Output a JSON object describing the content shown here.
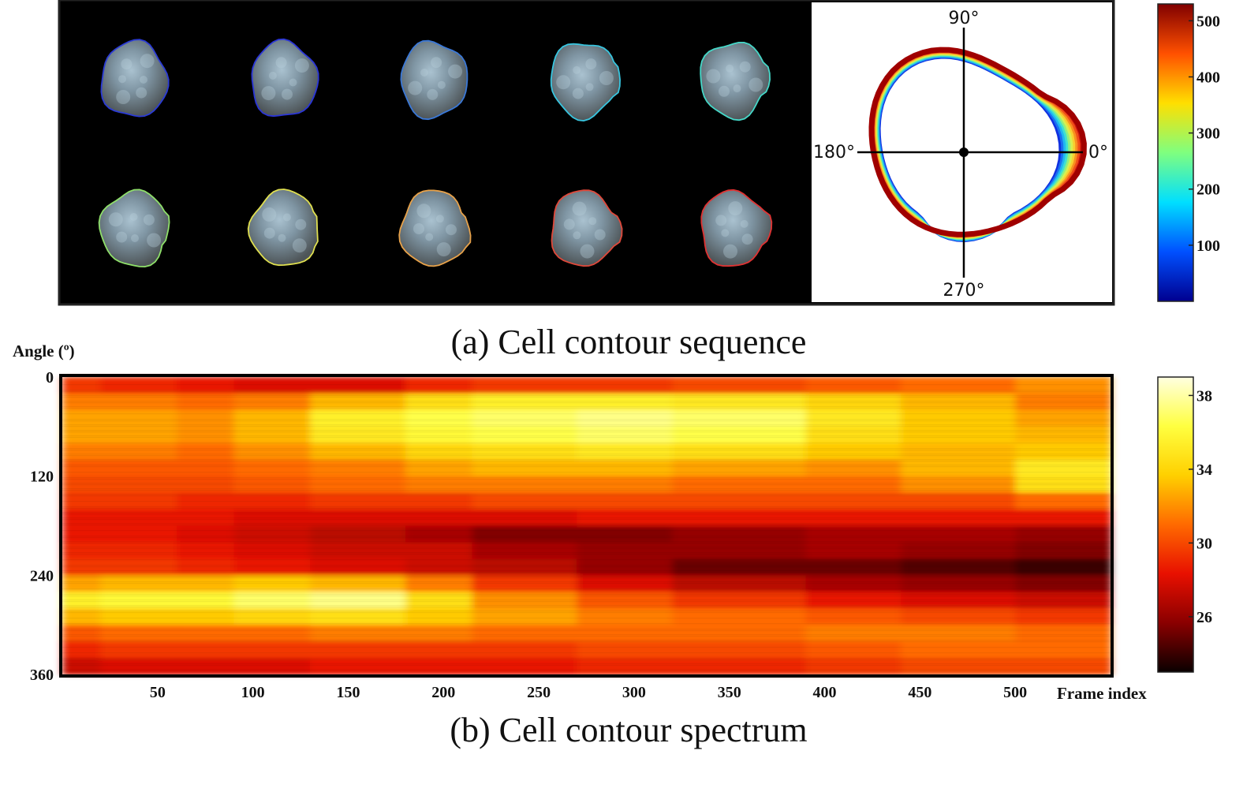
{
  "chart_data": [
    {
      "type": "image-sequence",
      "caption": "(a) Cell contour sequence",
      "cell_outline_colors": [
        "#2b3bd6",
        "#2a35d8",
        "#3a78d8",
        "#38c6e0",
        "#45d8c8",
        "#8fe06a",
        "#e0e050",
        "#e8a24a",
        "#e0483a",
        "#e03232"
      ],
      "polar_labels": {
        "deg0": "0°",
        "deg90": "90°",
        "deg180": "180°",
        "deg270": "270°"
      },
      "colorbar": {
        "ticks": [
          "500",
          "400",
          "300",
          "200",
          "100"
        ],
        "min": 0,
        "max": 530,
        "stops": [
          "#00008f",
          "#0050ff",
          "#00dfff",
          "#7fff7f",
          "#ffdf00",
          "#ff5000",
          "#800000"
        ]
      }
    },
    {
      "type": "heatmap",
      "caption": "(b) Cell contour spectrum",
      "ylabel": "Angle (º)",
      "xlabel": "Frame index",
      "yticks": [
        "0",
        "120",
        "240",
        "360"
      ],
      "ytick_values": [
        0,
        120,
        240,
        360
      ],
      "xticks": [
        "50",
        "100",
        "150",
        "200",
        "250",
        "300",
        "350",
        "400",
        "450",
        "500"
      ],
      "xtick_values": [
        50,
        100,
        150,
        200,
        250,
        300,
        350,
        400,
        450,
        500
      ],
      "xlim": [
        0,
        550
      ],
      "ylim": [
        0,
        360
      ],
      "colorbar": {
        "ticks": [
          "38",
          "34",
          "30",
          "26"
        ],
        "tick_values": [
          38,
          34,
          30,
          26
        ],
        "min": 23,
        "max": 39,
        "stops": [
          "#0a0000",
          "#8a0000",
          "#e81000",
          "#ff6a00",
          "#ffd000",
          "#ffff40",
          "#ffffe0"
        ]
      },
      "frame_bands": [
        0,
        20,
        60,
        90,
        130,
        180,
        215,
        270,
        320,
        390,
        440,
        500,
        550
      ],
      "angle_bins": [
        0,
        20,
        40,
        60,
        80,
        100,
        120,
        140,
        160,
        180,
        200,
        220,
        240,
        260,
        280,
        300,
        320,
        340,
        360
      ],
      "values": [
        [
          29.5,
          29.0,
          28.5,
          28.0,
          28.0,
          29.0,
          29.5,
          29.5,
          30.0,
          30.5,
          31.0,
          32.0,
          33.0
        ],
        [
          31.5,
          31.5,
          31.0,
          31.5,
          33.0,
          34.5,
          35.5,
          35.5,
          35.0,
          34.0,
          33.0,
          31.5,
          31.0
        ],
        [
          32.5,
          32.5,
          32.0,
          33.0,
          35.5,
          36.5,
          37.0,
          37.5,
          37.0,
          35.0,
          33.5,
          32.5,
          32.0
        ],
        [
          32.5,
          32.5,
          32.0,
          33.0,
          35.0,
          36.0,
          36.5,
          37.0,
          36.5,
          34.5,
          33.5,
          33.0,
          33.0
        ],
        [
          31.5,
          31.5,
          31.0,
          32.0,
          33.0,
          34.0,
          34.5,
          35.0,
          34.5,
          33.5,
          33.0,
          33.5,
          34.0
        ],
        [
          30.5,
          30.5,
          30.5,
          31.0,
          31.5,
          32.5,
          33.0,
          33.0,
          32.5,
          32.0,
          33.0,
          35.0,
          35.5
        ],
        [
          30.0,
          30.0,
          30.0,
          30.5,
          31.0,
          31.5,
          31.5,
          31.5,
          31.0,
          31.0,
          32.0,
          34.5,
          36.0
        ],
        [
          29.5,
          29.5,
          29.0,
          29.0,
          29.5,
          29.5,
          30.0,
          30.0,
          30.0,
          30.0,
          30.0,
          31.0,
          31.5
        ],
        [
          28.5,
          28.5,
          28.5,
          28.0,
          28.0,
          28.0,
          28.0,
          28.5,
          28.5,
          28.5,
          28.5,
          28.5,
          28.5
        ],
        [
          28.5,
          28.5,
          28.0,
          27.5,
          27.0,
          26.5,
          25.5,
          25.5,
          26.0,
          26.5,
          26.5,
          26.0,
          26.0
        ],
        [
          29.0,
          29.0,
          28.5,
          28.0,
          27.5,
          27.5,
          26.5,
          26.0,
          26.0,
          26.5,
          26.0,
          25.5,
          25.5
        ],
        [
          29.5,
          29.5,
          29.0,
          28.5,
          28.0,
          27.5,
          27.0,
          26.0,
          25.0,
          25.0,
          24.5,
          24.0,
          24.0
        ],
        [
          32.5,
          33.0,
          33.0,
          33.5,
          33.0,
          31.5,
          29.5,
          28.0,
          27.0,
          26.5,
          26.0,
          25.5,
          25.0
        ],
        [
          35.5,
          36.0,
          36.0,
          37.0,
          37.5,
          34.5,
          32.0,
          30.5,
          29.5,
          28.5,
          28.0,
          27.5,
          27.0
        ],
        [
          33.0,
          33.5,
          33.5,
          34.0,
          34.5,
          33.5,
          32.5,
          31.5,
          31.0,
          30.5,
          30.0,
          29.5,
          29.0
        ],
        [
          30.5,
          31.0,
          31.0,
          31.0,
          31.5,
          31.5,
          31.0,
          31.0,
          31.0,
          31.5,
          31.5,
          31.0,
          31.0
        ],
        [
          29.0,
          29.5,
          29.5,
          29.5,
          29.5,
          29.5,
          29.5,
          30.0,
          30.0,
          30.5,
          31.0,
          31.0,
          31.0
        ],
        [
          27.5,
          28.0,
          28.0,
          28.0,
          28.5,
          28.5,
          28.5,
          29.0,
          29.0,
          29.5,
          30.0,
          30.0,
          30.0
        ]
      ]
    }
  ]
}
